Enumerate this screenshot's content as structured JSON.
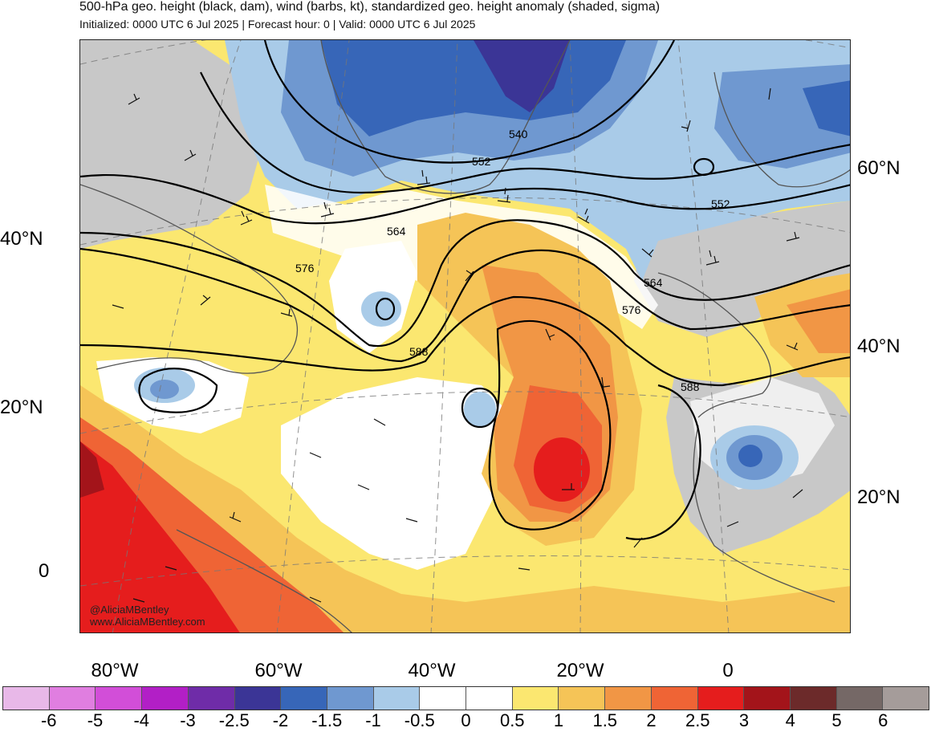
{
  "header": {
    "title": "500-hPa geo. height (black, dam), wind (barbs, kt), standardized geo. height anomaly (shaded, sigma)",
    "subtitle": "Initialized: 0000 UTC 6 Jul 2025 | Forecast hour: 0 | Valid: 0000 UTC 6 Jul 2025"
  },
  "map": {
    "projection": "lambert-conformal",
    "region": "North Atlantic",
    "grid": true,
    "lat_labels_left": [
      "40°N",
      "20°N",
      "0"
    ],
    "lat_labels_right": [
      "60°N",
      "40°N",
      "20°N"
    ],
    "lon_labels": [
      "80°W",
      "60°W",
      "40°W",
      "20°W",
      "0"
    ],
    "contour_labels": [
      "540",
      "552",
      "564",
      "576",
      "588",
      "552",
      "564",
      "576",
      "588"
    ],
    "contour_color": "#000000",
    "credit": [
      "@AliciaMBentley",
      "www.AliciaMBentley.com"
    ]
  },
  "colorbar": {
    "labels": [
      "-6",
      "-5",
      "-4",
      "-3",
      "-2.5",
      "-2",
      "-1.5",
      "-1",
      "-0.5",
      "0",
      "0.5",
      "1",
      "1.5",
      "2",
      "2.5",
      "3",
      "4",
      "5",
      "6"
    ],
    "colors": [
      "#e8b8e8",
      "#e07ee0",
      "#d24ed8",
      "#b21fc6",
      "#6f2ca8",
      "#3b3596",
      "#3766b8",
      "#6f98d0",
      "#a9cbe8",
      "#ffffff",
      "#ffffff",
      "#fbe770",
      "#f5c457",
      "#f19645",
      "#ef6435",
      "#e51d1d",
      "#a3141a",
      "#6c2a2a",
      "#756866",
      "#a59c9a"
    ]
  }
}
